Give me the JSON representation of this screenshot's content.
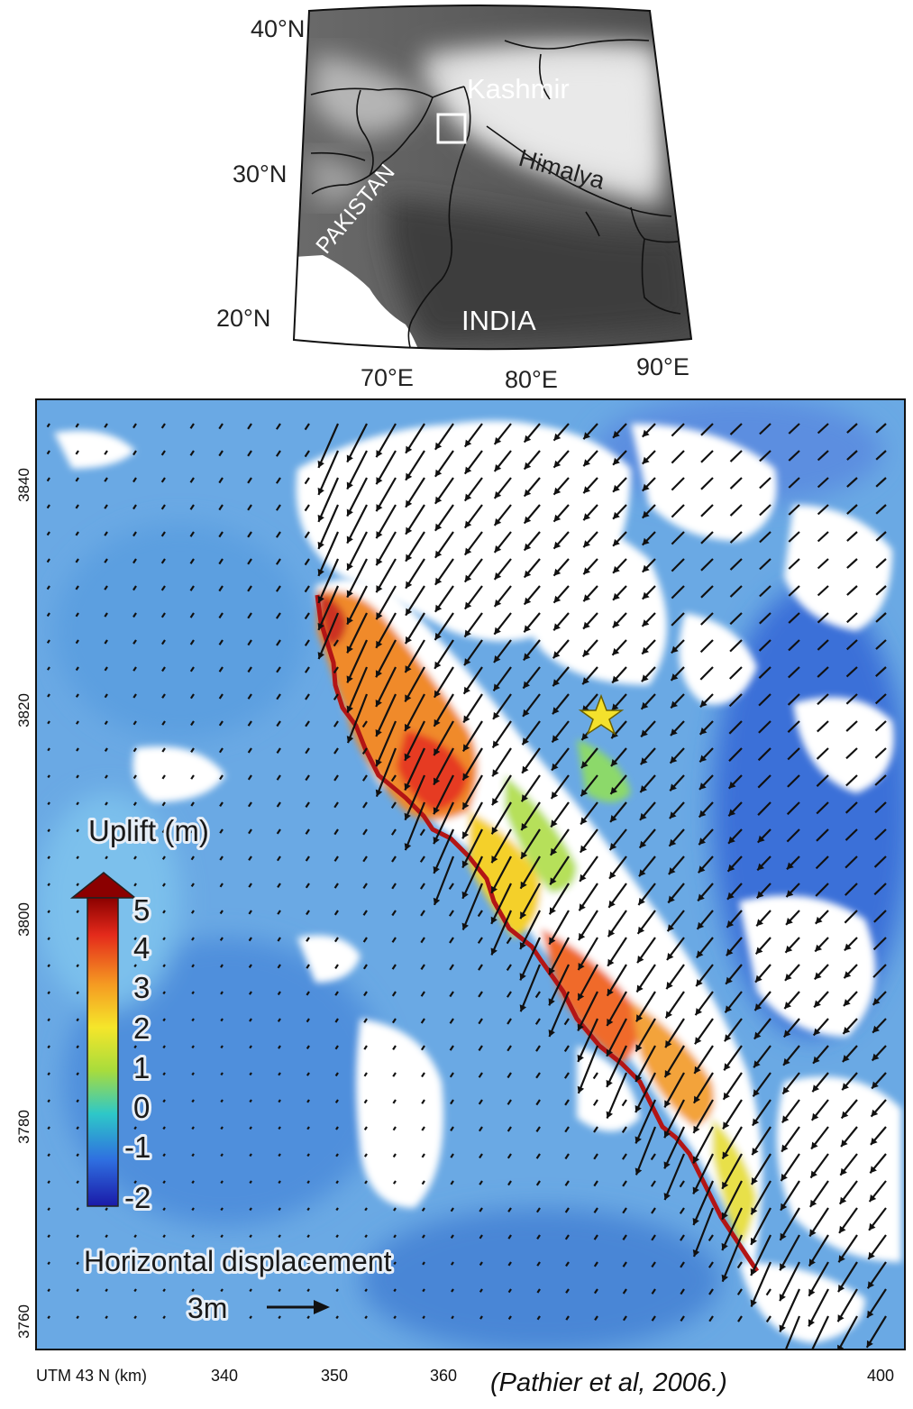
{
  "inset": {
    "lat_labels": [
      "40°N",
      "30°N",
      "20°N"
    ],
    "lon_labels": [
      "70°E",
      "80°E",
      "90°E"
    ],
    "place_labels": {
      "kashmir": "Kashmir",
      "himalaya": "Himalya",
      "pakistan": "PAKISTAN",
      "india": "INDIA"
    }
  },
  "main_map": {
    "y_ticks": [
      "3840",
      "3820",
      "3800",
      "3780",
      "3760"
    ],
    "x_axis_label": "UTM 43 N (km)",
    "x_ticks": [
      "340",
      "350",
      "360",
      "400"
    ],
    "epicenter": "star-icon",
    "fault_color": "#b31515"
  },
  "colorbar": {
    "title": "Uplift (m)",
    "labels": [
      "5",
      "4",
      "3",
      "2",
      "1",
      "0",
      "-1",
      "-2"
    ],
    "colors": [
      "#8b0000",
      "#e42a1b",
      "#f59a22",
      "#f5e62a",
      "#a8dc3c",
      "#2ec8c8",
      "#2f6fe0",
      "#1a1aa8"
    ]
  },
  "displacement_scale": {
    "title": "Horizontal displacement",
    "value": "3m"
  },
  "citation": "(Pathier et al, 2006.)"
}
